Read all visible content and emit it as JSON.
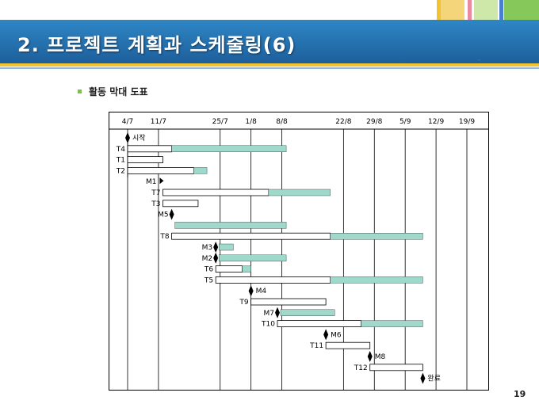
{
  "slide": {
    "title": "2. 프로젝트 계획과 스케줄링(6)",
    "subtitle": "활동 막대 도표",
    "page_number": "19"
  },
  "colors": {
    "title_bar": "#2462a6",
    "accent_yellow": "#f3c230",
    "accent_green": "#7cc04a",
    "swatch_orange": "#f4a640",
    "swatch_pink": "#e98aa0",
    "swatch_blue": "#4a7fd0",
    "task_fill": "#9fd9cc"
  },
  "chart_data": {
    "type": "gantt",
    "date_labels": [
      "4/7",
      "11/7",
      "25/7",
      "1/8",
      "8/8",
      "22/8",
      "29/8",
      "5/9",
      "12/9",
      "19/9"
    ],
    "rows": [
      {
        "label": "시작",
        "kind": "milestone",
        "day": 0
      },
      {
        "label": "T4",
        "kind": "task",
        "start": 0,
        "end": 10,
        "fill_from": 10,
        "fill_to": 36
      },
      {
        "label": "T1",
        "kind": "task",
        "start": 0,
        "end": 8
      },
      {
        "label": "T2",
        "kind": "task",
        "start": 0,
        "end": 15,
        "fill_from": 15,
        "fill_to": 18
      },
      {
        "label": "M1",
        "kind": "flag",
        "day": 8
      },
      {
        "label": "T7",
        "kind": "task",
        "start": 8,
        "end": 32,
        "fill_from": 32,
        "fill_to": 46
      },
      {
        "label": "T3",
        "kind": "task",
        "start": 8,
        "end": 16
      },
      {
        "label": "M5",
        "kind": "milestone",
        "day": 10
      },
      {
        "label": "",
        "kind": "bar",
        "from": 10,
        "to": 36
      },
      {
        "label": "T8",
        "kind": "task",
        "start": 10,
        "end": 46,
        "fill_from": 46,
        "fill_to": 67
      },
      {
        "label": "M3",
        "kind": "milestone",
        "day": 20,
        "fill_from": 20,
        "fill_to": 24
      },
      {
        "label": "M2",
        "kind": "milestone",
        "day": 20,
        "fill_from": 20,
        "fill_to": 36
      },
      {
        "label": "T6",
        "kind": "task",
        "start": 20,
        "end": 26,
        "fill_from": 26,
        "fill_to": 28
      },
      {
        "label": "T5",
        "kind": "task",
        "start": 20,
        "end": 46,
        "fill_from": 46,
        "fill_to": 67
      },
      {
        "label": "M4",
        "kind": "milestone",
        "day": 28
      },
      {
        "label": "T9",
        "kind": "task",
        "start": 28,
        "end": 45
      },
      {
        "label": "M7",
        "kind": "milestone",
        "day": 34,
        "fill_from": 34,
        "fill_to": 47
      },
      {
        "label": "T10",
        "kind": "task",
        "start": 34,
        "end": 53,
        "fill_from": 53,
        "fill_to": 67
      },
      {
        "label": "M6",
        "kind": "milestone",
        "day": 45
      },
      {
        "label": "T11",
        "kind": "task",
        "start": 45,
        "end": 55
      },
      {
        "label": "M8",
        "kind": "milestone",
        "day": 55
      },
      {
        "label": "T12",
        "kind": "task",
        "start": 55,
        "end": 67
      },
      {
        "label": "완료",
        "kind": "milestone",
        "day": 67
      }
    ]
  }
}
